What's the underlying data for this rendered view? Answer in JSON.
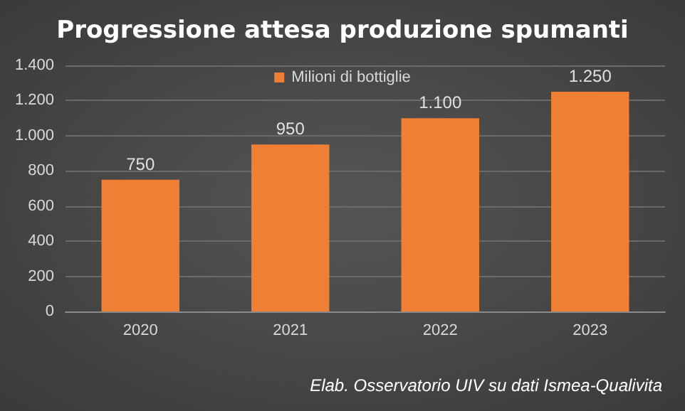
{
  "chart_data": {
    "type": "bar",
    "title": "Progressione attesa produzione spumanti",
    "categories": [
      "2020",
      "2021",
      "2022",
      "2023"
    ],
    "series": [
      {
        "name": "Milioni di bottiglie",
        "color": "#ee7f35",
        "values": [
          750,
          950,
          1100,
          1250
        ]
      }
    ],
    "value_labels": [
      "750",
      "950",
      "1.100",
      "1.250"
    ],
    "ylim": [
      0,
      1400
    ],
    "yticks": [
      0,
      200,
      400,
      600,
      800,
      {
        "value": 1000,
        "label": "1.000"
      },
      {
        "value": 1200,
        "label": "1.200"
      },
      {
        "value": 1400,
        "label": "1.400"
      }
    ],
    "grid": "y",
    "legend": "top",
    "annotations": [
      "Elab. Osservatorio UIV su dati Ismea-Qualivita"
    ]
  }
}
